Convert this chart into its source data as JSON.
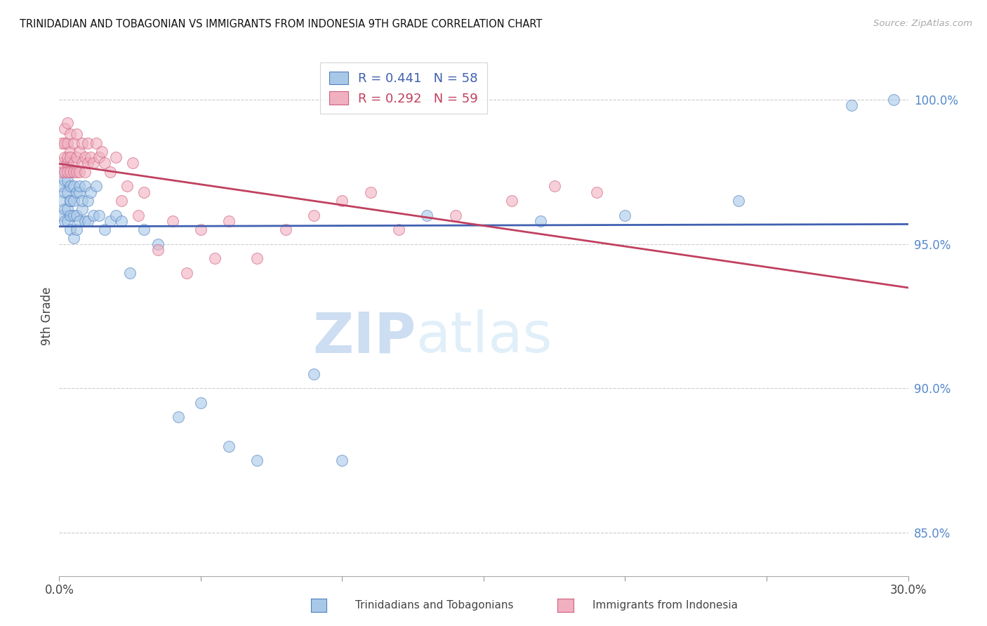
{
  "title": "TRINIDADIAN AND TOBAGONIAN VS IMMIGRANTS FROM INDONESIA 9TH GRADE CORRELATION CHART",
  "source": "Source: ZipAtlas.com",
  "ylabel": "9th Grade",
  "legend_label_blue": "Trinidadians and Tobagonians",
  "legend_label_pink": "Immigrants from Indonesia",
  "blue_R": 0.441,
  "blue_N": 58,
  "pink_R": 0.292,
  "pink_N": 59,
  "xlim": [
    0.0,
    0.3
  ],
  "ylim": [
    0.835,
    1.015
  ],
  "yticks": [
    0.85,
    0.9,
    0.95,
    1.0
  ],
  "ytick_labels": [
    "85.0%",
    "90.0%",
    "95.0%",
    "100.0%"
  ],
  "xtick_positions": [
    0.0,
    0.05,
    0.1,
    0.15,
    0.2,
    0.25,
    0.3
  ],
  "xtick_labels_show": [
    "0.0%",
    "",
    "",
    "",
    "",
    "",
    "30.0%"
  ],
  "blue_color": "#a8c8e8",
  "pink_color": "#f0b0c0",
  "blue_edge_color": "#5080c0",
  "pink_edge_color": "#d06080",
  "blue_line_color": "#4060b0",
  "pink_line_color": "#c04060",
  "watermark_zip": "ZIP",
  "watermark_atlas": "atlas",
  "blue_x": [
    0.001,
    0.001,
    0.001,
    0.002,
    0.002,
    0.002,
    0.002,
    0.002,
    0.003,
    0.003,
    0.003,
    0.003,
    0.003,
    0.004,
    0.004,
    0.004,
    0.004,
    0.004,
    0.004,
    0.005,
    0.005,
    0.005,
    0.005,
    0.006,
    0.006,
    0.006,
    0.007,
    0.007,
    0.007,
    0.008,
    0.008,
    0.009,
    0.009,
    0.01,
    0.01,
    0.011,
    0.012,
    0.013,
    0.014,
    0.016,
    0.018,
    0.02,
    0.022,
    0.025,
    0.03,
    0.035,
    0.042,
    0.05,
    0.06,
    0.07,
    0.09,
    0.1,
    0.13,
    0.17,
    0.2,
    0.24,
    0.28,
    0.295
  ],
  "blue_y": [
    0.97,
    0.965,
    0.96,
    0.975,
    0.968,
    0.962,
    0.972,
    0.958,
    0.968,
    0.978,
    0.962,
    0.972,
    0.958,
    0.965,
    0.975,
    0.96,
    0.97,
    0.955,
    0.965,
    0.97,
    0.96,
    0.952,
    0.965,
    0.96,
    0.968,
    0.955,
    0.968,
    0.958,
    0.97,
    0.962,
    0.965,
    0.958,
    0.97,
    0.965,
    0.958,
    0.968,
    0.96,
    0.97,
    0.96,
    0.955,
    0.958,
    0.96,
    0.958,
    0.94,
    0.955,
    0.95,
    0.89,
    0.895,
    0.88,
    0.875,
    0.905,
    0.875,
    0.96,
    0.958,
    0.96,
    0.965,
    0.998,
    1.0
  ],
  "pink_x": [
    0.001,
    0.001,
    0.001,
    0.002,
    0.002,
    0.002,
    0.002,
    0.003,
    0.003,
    0.003,
    0.003,
    0.003,
    0.004,
    0.004,
    0.004,
    0.004,
    0.005,
    0.005,
    0.005,
    0.006,
    0.006,
    0.006,
    0.007,
    0.007,
    0.008,
    0.008,
    0.009,
    0.009,
    0.01,
    0.01,
    0.011,
    0.012,
    0.013,
    0.014,
    0.015,
    0.016,
    0.018,
    0.02,
    0.022,
    0.024,
    0.026,
    0.028,
    0.03,
    0.035,
    0.04,
    0.045,
    0.05,
    0.055,
    0.06,
    0.07,
    0.08,
    0.09,
    0.1,
    0.11,
    0.12,
    0.14,
    0.16,
    0.175,
    0.19
  ],
  "pink_y": [
    0.975,
    0.985,
    0.978,
    0.98,
    0.99,
    0.975,
    0.985,
    0.978,
    0.985,
    0.992,
    0.975,
    0.98,
    0.982,
    0.975,
    0.988,
    0.98,
    0.978,
    0.985,
    0.975,
    0.98,
    0.988,
    0.975,
    0.982,
    0.975,
    0.978,
    0.985,
    0.975,
    0.98,
    0.978,
    0.985,
    0.98,
    0.978,
    0.985,
    0.98,
    0.982,
    0.978,
    0.975,
    0.98,
    0.965,
    0.97,
    0.978,
    0.96,
    0.968,
    0.948,
    0.958,
    0.94,
    0.955,
    0.945,
    0.958,
    0.945,
    0.955,
    0.96,
    0.965,
    0.968,
    0.955,
    0.96,
    0.965,
    0.97,
    0.968
  ]
}
